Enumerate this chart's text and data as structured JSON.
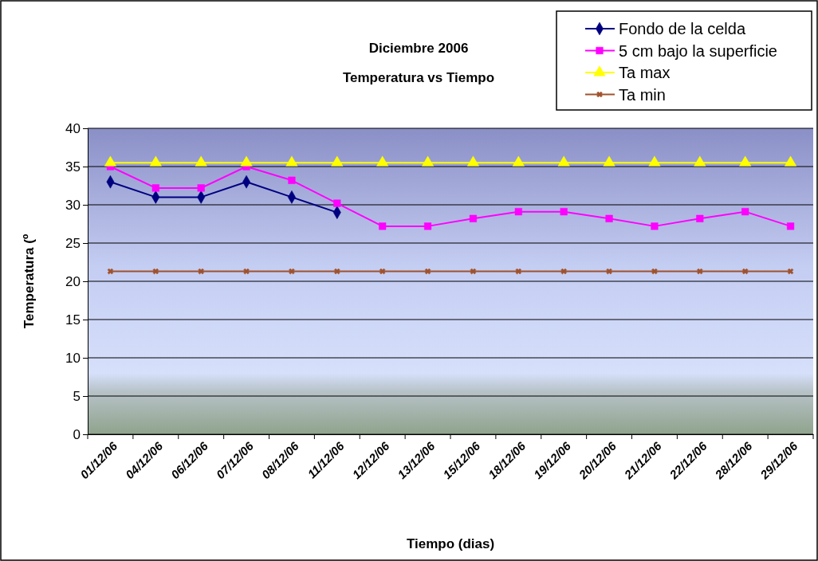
{
  "chart_data": {
    "type": "line",
    "title": "Diciembre 2006",
    "subtitle": "Temperatura vs Tiempo",
    "xlabel": "Tiempo (dias)",
    "ylabel": "Temperatura (º",
    "categories": [
      "01/12/06",
      "04/12/06",
      "06/12/06",
      "07/12/06",
      "08/12/06",
      "11/12/06",
      "12/12/06",
      "13/12/06",
      "15/12/06",
      "18/12/06",
      "19/12/06",
      "20/12/06",
      "21/12/06",
      "22/12/06",
      "28/12/06",
      "29/12/06"
    ],
    "series": [
      {
        "name": "Fondo de la celda",
        "color": "#000080",
        "marker": "diamond",
        "values": [
          33,
          31,
          31,
          33,
          31,
          29,
          null,
          null,
          null,
          null,
          null,
          null,
          null,
          null,
          null,
          null
        ]
      },
      {
        "name": "5 cm bajo la superficie",
        "color": "#ff00ff",
        "marker": "square",
        "values": [
          35,
          32.2,
          32.2,
          35,
          33.2,
          30.2,
          27.2,
          27.2,
          28.2,
          29.1,
          29.1,
          28.2,
          27.2,
          28.2,
          29.1,
          27.2
        ]
      },
      {
        "name": "Ta max",
        "color": "#ffff00",
        "marker": "triangle",
        "values": [
          35.5,
          35.5,
          35.5,
          35.5,
          35.5,
          35.5,
          35.5,
          35.5,
          35.5,
          35.5,
          35.5,
          35.5,
          35.5,
          35.5,
          35.5,
          35.5
        ]
      },
      {
        "name": "Ta min",
        "color": "#a0522d",
        "marker": "cross",
        "values": [
          21.3,
          21.3,
          21.3,
          21.3,
          21.3,
          21.3,
          21.3,
          21.3,
          21.3,
          21.3,
          21.3,
          21.3,
          21.3,
          21.3,
          21.3,
          21.3
        ]
      }
    ],
    "ylim": [
      0,
      40
    ],
    "yticks": [
      0,
      5,
      10,
      15,
      20,
      25,
      30,
      35,
      40
    ],
    "grid": "y",
    "legend": "top right"
  }
}
